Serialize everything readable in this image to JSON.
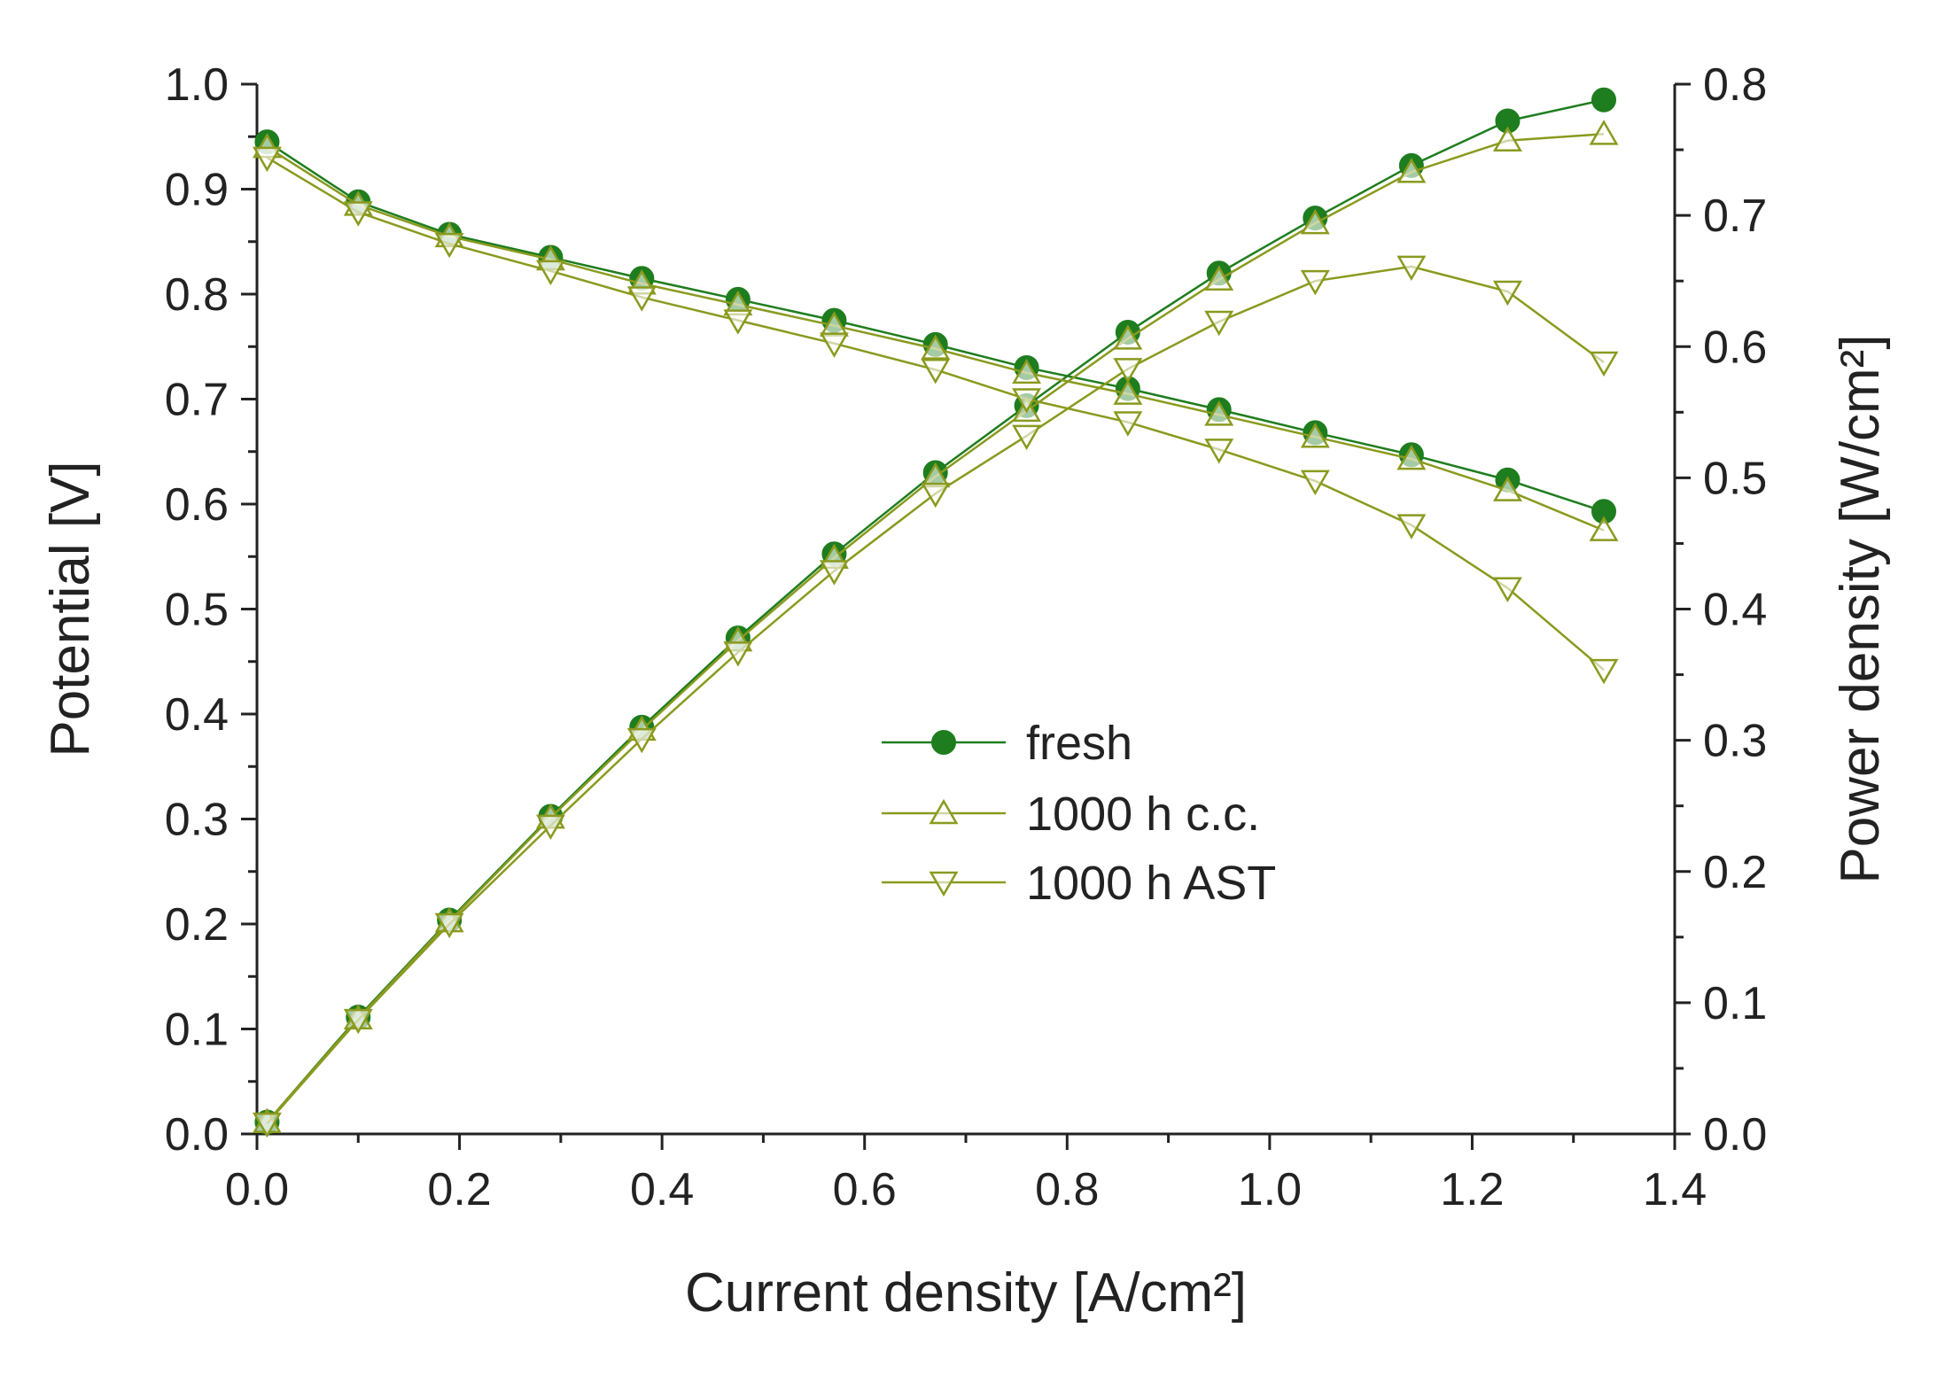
{
  "chart_data": {
    "type": "line",
    "xlabel": "Current density [A/cm²]",
    "ylabel_left": "Potential [V]",
    "ylabel_right": "Power density [W/cm²]",
    "xlim": [
      0.0,
      1.4
    ],
    "ylim_left": [
      0.0,
      1.0
    ],
    "ylim_right": [
      0.0,
      0.8
    ],
    "x_ticks": [
      "0.0",
      "0.2",
      "0.4",
      "0.6",
      "0.8",
      "1.0",
      "1.2",
      "1.4"
    ],
    "y_left_ticks": [
      "0.0",
      "0.1",
      "0.2",
      "0.3",
      "0.4",
      "0.5",
      "0.6",
      "0.7",
      "0.8",
      "0.9",
      "1.0"
    ],
    "y_right_ticks": [
      "0.0",
      "0.1",
      "0.2",
      "0.3",
      "0.4",
      "0.5",
      "0.6",
      "0.7",
      "0.8"
    ],
    "grid": false,
    "legend_position": "center-right",
    "x": [
      0.01,
      0.1,
      0.19,
      0.29,
      0.38,
      0.475,
      0.57,
      0.67,
      0.76,
      0.86,
      0.95,
      1.045,
      1.14,
      1.235,
      1.33
    ],
    "series": [
      {
        "name": "fresh",
        "marker": "filled-circle",
        "color": "#1e7d1e",
        "potential": [
          0.945,
          0.888,
          0.857,
          0.835,
          0.815,
          0.795,
          0.775,
          0.752,
          0.73,
          0.71,
          0.69,
          0.668,
          0.647,
          0.623,
          0.593
        ],
        "power": [
          0.009,
          0.089,
          0.163,
          0.242,
          0.31,
          0.378,
          0.442,
          0.504,
          0.555,
          0.611,
          0.656,
          0.698,
          0.738,
          0.772,
          0.788
        ]
      },
      {
        "name": "1000 h c.c.",
        "marker": "triangle-up",
        "color": "#8a9a1e",
        "potential": [
          0.94,
          0.885,
          0.855,
          0.833,
          0.81,
          0.79,
          0.77,
          0.748,
          0.725,
          0.705,
          0.685,
          0.664,
          0.643,
          0.613,
          0.575
        ],
        "power": [
          0.009,
          0.088,
          0.162,
          0.241,
          0.308,
          0.376,
          0.439,
          0.501,
          0.551,
          0.606,
          0.651,
          0.694,
          0.733,
          0.757,
          0.762
        ]
      },
      {
        "name": "1000 h AST",
        "marker": "triangle-down",
        "color": "#8a9a1e",
        "potential": [
          0.93,
          0.878,
          0.848,
          0.822,
          0.797,
          0.775,
          0.753,
          0.728,
          0.7,
          0.678,
          0.652,
          0.622,
          0.58,
          0.52,
          0.442
        ],
        "power": [
          0.008,
          0.087,
          0.16,
          0.235,
          0.301,
          0.367,
          0.429,
          0.488,
          0.532,
          0.583,
          0.619,
          0.65,
          0.661,
          0.642,
          0.588
        ]
      }
    ]
  }
}
